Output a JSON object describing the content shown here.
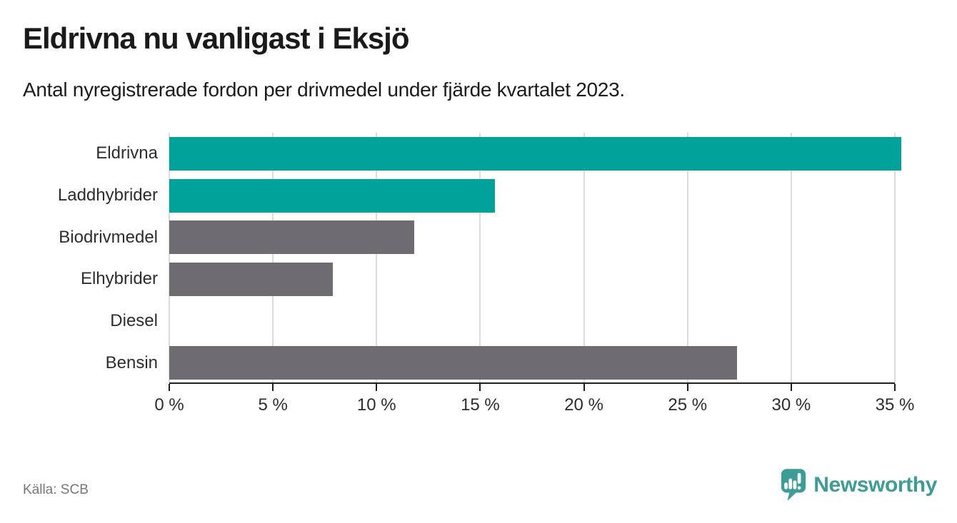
{
  "header": {
    "title": "Eldrivna nu vanligast i Eksjö",
    "subtitle": "Antal nyregistrerade fordon per drivmedel under fjärde kvartalet 2023."
  },
  "footer": {
    "source": "Källa: SCB",
    "brand": "Newsworthy"
  },
  "colors": {
    "highlight_teal": "#00A29A",
    "neutral_gray": "#6E6B71",
    "gridline": "#DCDCDC",
    "axis": "#1F1F1F",
    "logo_teal": "#3B9D95"
  },
  "chart_data": {
    "type": "bar",
    "orientation": "horizontal",
    "title": "Eldrivna nu vanligast i Eksjö",
    "subtitle": "Antal nyregistrerade fordon per drivmedel under fjärde kvartalet 2023.",
    "xlabel": "",
    "ylabel": "",
    "unit": "%",
    "categories": [
      "Eldrivna",
      "Laddhybrider",
      "Biodrivmedel",
      "Elhybrider",
      "Diesel",
      "Bensin"
    ],
    "values": [
      35.3,
      15.7,
      11.8,
      7.9,
      0,
      27.4
    ],
    "bar_colors": [
      "#00A29A",
      "#00A29A",
      "#6E6B71",
      "#6E6B71",
      "#6E6B71",
      "#6E6B71"
    ],
    "xlim": [
      0,
      35
    ],
    "xticks": [
      0,
      5,
      10,
      15,
      20,
      25,
      30,
      35
    ],
    "xtick_labels": [
      "0 %",
      "5 %",
      "10 %",
      "15 %",
      "20 %",
      "25 %",
      "30 %",
      "35 %"
    ],
    "grid": "vertical-on",
    "legend": "none"
  }
}
